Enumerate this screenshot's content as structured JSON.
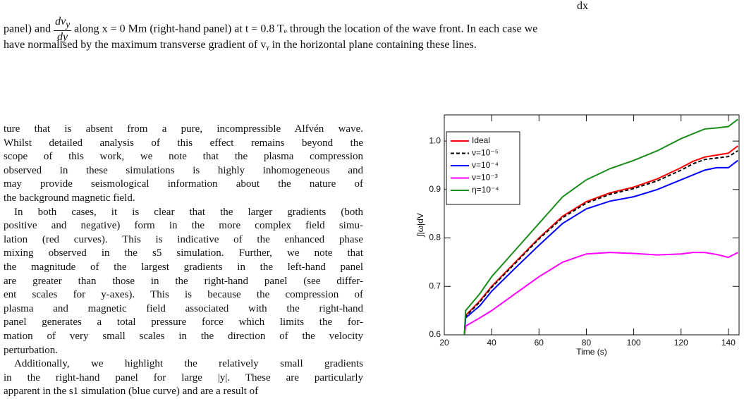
{
  "caption": {
    "top_fragment": "dx",
    "start": "panel) and",
    "fraction": {
      "num": "dv",
      "num_sub": "y",
      "den": "dy"
    },
    "rest": "along x = 0 Mm (right-hand panel) at t = 0.8 Tₑ through the location of the wave front. In each case we",
    "line3": "have normalised by the maximum transverse gradient of vᵧ in the horizontal plane containing these lines."
  },
  "paragraphs": [
    [
      "ture that is absent from a pure, incompressible Alfvén wave.",
      "Whilst detailed analysis of this effect remains beyond the",
      "scope of this work, we note that the plasma compression",
      "observed in these simulations is highly inhomogeneous and",
      "may provide seismological information about the nature of",
      "the background magnetic field."
    ],
    [
      "In both cases, it is clear that the larger gradients (both",
      "positive and negative) form in the more complex field simu-",
      "lation (red curves). This is indicative of the enhanced phase",
      "mixing observed in the s5 simulation. Further, we note that",
      "the magnitude of the largest gradients in the left-hand panel",
      "are greater than those in the right-hand panel (see differ-",
      "ent scales for y-axes). This is because the compression of",
      "plasma and magnetic field associated with the right-hand",
      "panel generates a total pressure force which limits the for-",
      "mation of very small scales in the direction of the velocity",
      "perturbation."
    ],
    [
      "Additionally, we highlight the relatively small gradients",
      "in the right-hand panel for large |y|. These are particularly",
      "apparent in the s1 simulation (blue curve) and are a result of"
    ]
  ],
  "chart_data": {
    "type": "line",
    "x_label": "Time (s)",
    "y_label": "∫|ω|dV",
    "x": [
      28.5,
      29,
      35,
      40,
      50,
      60,
      70,
      80,
      90,
      100,
      110,
      120,
      125,
      130,
      135,
      140,
      144
    ],
    "series": [
      {
        "name": "Ideal",
        "color": "#ff0000",
        "dashed": false,
        "values": [
          0.6,
          0.64,
          0.67,
          0.7,
          0.75,
          0.8,
          0.845,
          0.875,
          0.893,
          0.905,
          0.922,
          0.945,
          0.958,
          0.967,
          0.971,
          0.975,
          0.99
        ]
      },
      {
        "name": "ν=10⁻⁵",
        "color": "#000000",
        "dashed": true,
        "values": [
          0.6,
          0.638,
          0.668,
          0.698,
          0.748,
          0.798,
          0.842,
          0.872,
          0.89,
          0.902,
          0.918,
          0.94,
          0.953,
          0.962,
          0.965,
          0.968,
          0.98
        ]
      },
      {
        "name": "ν=10⁻⁴",
        "color": "#0000ff",
        "dashed": false,
        "values": [
          0.6,
          0.635,
          0.66,
          0.69,
          0.738,
          0.785,
          0.83,
          0.86,
          0.876,
          0.885,
          0.9,
          0.92,
          0.93,
          0.94,
          0.945,
          0.945,
          0.96
        ]
      },
      {
        "name": "ν=10⁻³",
        "color": "#ff00ff",
        "dashed": false,
        "values": [
          0.6,
          0.618,
          0.635,
          0.65,
          0.685,
          0.72,
          0.75,
          0.767,
          0.77,
          0.768,
          0.765,
          0.767,
          0.77,
          0.77,
          0.766,
          0.76,
          0.77
        ]
      },
      {
        "name": "η=10⁻⁴",
        "color": "#1a8c1a",
        "dashed": false,
        "values": [
          0.6,
          0.65,
          0.685,
          0.72,
          0.775,
          0.83,
          0.885,
          0.92,
          0.943,
          0.96,
          0.98,
          1.005,
          1.015,
          1.025,
          1.027,
          1.03,
          1.045
        ]
      }
    ],
    "xlim": [
      20,
      144.5
    ],
    "ylim": [
      0.6,
      1.054
    ],
    "xticks": [
      20,
      40,
      60,
      80,
      100,
      120,
      140
    ],
    "yticks": [
      0.6,
      0.7,
      0.8,
      0.9,
      {
        "value": 1,
        "label": "1.0"
      }
    ],
    "legend": "upper left"
  }
}
